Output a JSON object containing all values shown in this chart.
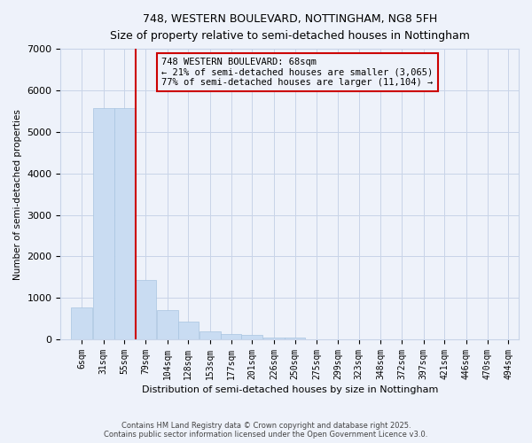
{
  "title": "748, WESTERN BOULEVARD, NOTTINGHAM, NG8 5FH",
  "subtitle": "Size of property relative to semi-detached houses in Nottingham",
  "xlabel": "Distribution of semi-detached houses by size in Nottingham",
  "ylabel": "Number of semi-detached properties",
  "footer_line1": "Contains HM Land Registry data © Crown copyright and database right 2025.",
  "footer_line2": "Contains public sector information licensed under the Open Government Licence v3.0.",
  "annotation_line1": "748 WESTERN BOULEVARD: 68sqm",
  "annotation_line2": "← 21% of semi-detached houses are smaller (3,065)",
  "annotation_line3": "77% of semi-detached houses are larger (11,104) →",
  "property_size": 68,
  "bar_color": "#c9dcf2",
  "bar_edge_color": "#a8c4e0",
  "redline_color": "#cc0000",
  "background_color": "#eef2fa",
  "grid_color": "#c8d4e8",
  "categories": [
    6,
    31,
    55,
    79,
    104,
    128,
    153,
    177,
    201,
    226,
    250,
    275,
    299,
    323,
    348,
    372,
    397,
    421,
    446,
    470,
    494
  ],
  "bin_width": 24,
  "values": [
    780,
    5580,
    5580,
    1430,
    700,
    430,
    200,
    130,
    100,
    50,
    50,
    0,
    0,
    0,
    0,
    0,
    0,
    0,
    0,
    0,
    0
  ],
  "ylim": [
    0,
    7000
  ],
  "yticks": [
    0,
    1000,
    2000,
    3000,
    4000,
    5000,
    6000,
    7000
  ]
}
